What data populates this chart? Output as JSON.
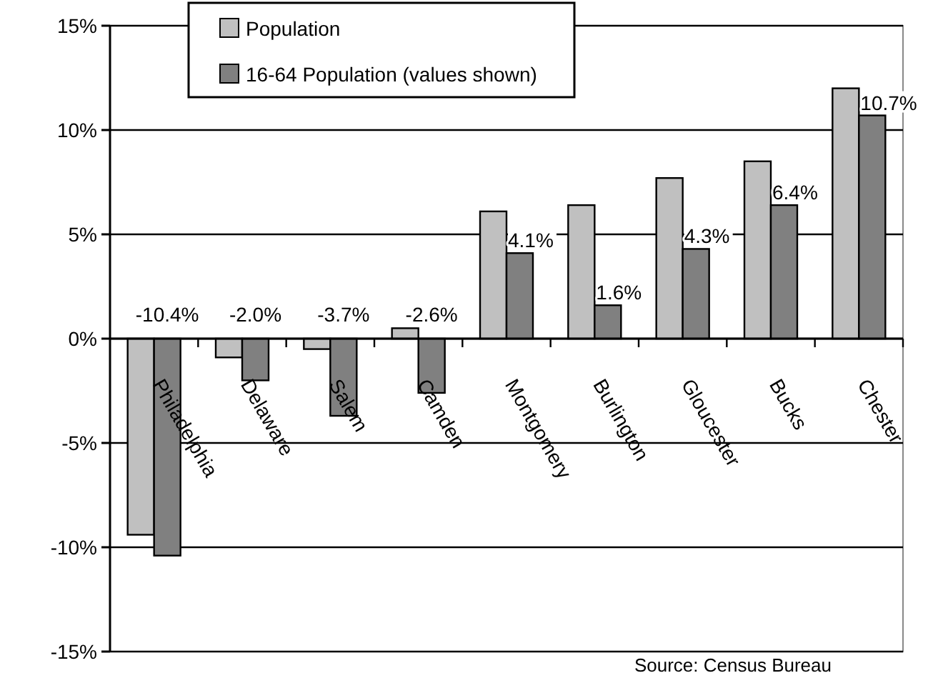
{
  "chart_data": {
    "type": "bar",
    "categories": [
      "Philadelphia",
      "Delaware",
      "Salem",
      "Camden",
      "Montgomery",
      "Burlington",
      "Gloucester",
      "Bucks",
      "Chester"
    ],
    "series": [
      {
        "name": "Population",
        "color": "#c0c0c0",
        "values": [
          -9.4,
          -0.9,
          -0.5,
          0.5,
          6.1,
          6.4,
          7.7,
          8.5,
          12.0
        ]
      },
      {
        "name": "16-64 Population (values shown)",
        "color": "#808080",
        "values": [
          -10.4,
          -2.0,
          -3.7,
          -2.6,
          4.1,
          1.6,
          4.3,
          6.4,
          10.7
        ],
        "value_labels": [
          "-10.4%",
          "-2.0%",
          "-3.7%",
          "-2.6%",
          "4.1%",
          "1.6%",
          "4.3%",
          "6.4%",
          "10.7%"
        ]
      }
    ],
    "ylim": [
      -15,
      15
    ],
    "yticks": [
      {
        "value": -15,
        "label": "-15%"
      },
      {
        "value": -10,
        "label": "-10%"
      },
      {
        "value": -5,
        "label": "-5%"
      },
      {
        "value": 0,
        "label": "0%"
      },
      {
        "value": 5,
        "label": "5%"
      },
      {
        "value": 10,
        "label": "10%"
      },
      {
        "value": 15,
        "label": "15%"
      }
    ],
    "grid": "y",
    "legend": "top left",
    "annotations": [
      "Source: Census Bureau"
    ]
  }
}
